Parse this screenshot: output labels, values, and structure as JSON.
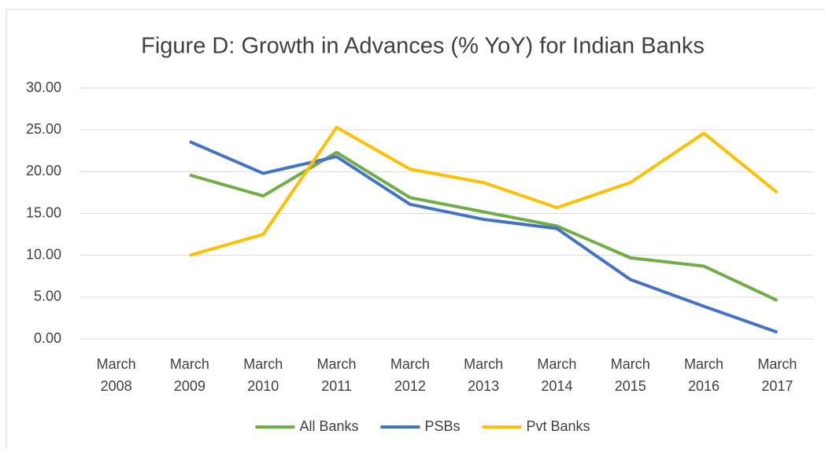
{
  "chart_data": {
    "type": "line",
    "title": "Figure D: Growth in Advances (% YoY) for Indian Banks",
    "categories": [
      "March 2008",
      "March 2009",
      "March 2010",
      "March 2011",
      "March 2012",
      "March 2013",
      "March 2014",
      "March 2015",
      "March 2016",
      "March 2017"
    ],
    "series": [
      {
        "name": "All Banks",
        "color": "#70ad47",
        "values": [
          null,
          19.6,
          17.1,
          22.3,
          16.9,
          15.2,
          13.5,
          9.7,
          8.7,
          4.6
        ]
      },
      {
        "name": "PSBs",
        "color": "#4472c4",
        "values": [
          null,
          23.6,
          19.8,
          21.8,
          16.1,
          14.3,
          13.2,
          7.1,
          3.9,
          0.8
        ]
      },
      {
        "name": "Pvt Banks",
        "color": "#ffc000",
        "values": [
          null,
          10.0,
          12.5,
          25.3,
          20.3,
          18.7,
          15.7,
          18.7,
          24.6,
          17.5
        ]
      }
    ],
    "ylim": [
      0,
      30
    ],
    "yticks": [
      {
        "value": 0,
        "label": "0.00"
      },
      {
        "value": 5,
        "label": "5.00"
      },
      {
        "value": 10,
        "label": "10.00"
      },
      {
        "value": 15,
        "label": "15.00"
      },
      {
        "value": 20,
        "label": "20.00"
      },
      {
        "value": 25,
        "label": "25.00"
      },
      {
        "value": 30,
        "label": "30.00"
      }
    ],
    "grid": true,
    "legend": "bottom"
  }
}
